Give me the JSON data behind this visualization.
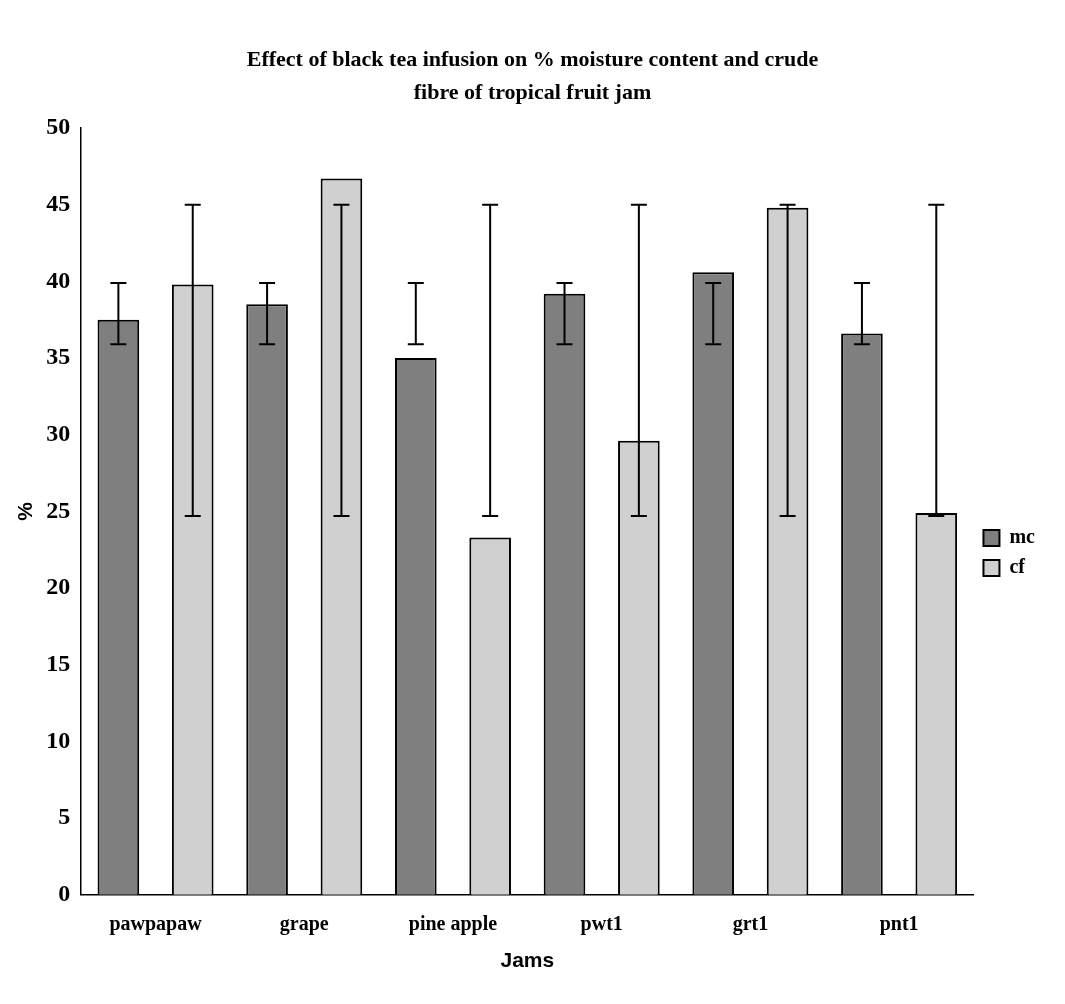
{
  "chart_data": {
    "type": "bar",
    "title": "Effect of black tea infusion on % moisture content and crude fibre of tropical fruit jam",
    "xlabel": "Jams",
    "ylabel": "%",
    "categories": [
      "pawpapaw",
      "grape",
      "pine apple",
      "pwt1",
      "grt1",
      "pnt1"
    ],
    "series": [
      {
        "name": "mc",
        "color": "#7f7f7f",
        "values": [
          37.5,
          38.5,
          35.0,
          39.2,
          40.6,
          36.6
        ],
        "errors": [
          [
            35.9,
            39.9
          ],
          [
            35.9,
            39.9
          ],
          [
            35.9,
            39.9
          ],
          [
            35.9,
            39.9
          ],
          [
            35.9,
            39.9
          ],
          [
            35.9,
            39.9
          ]
        ]
      },
      {
        "name": "cf",
        "color": "#d0d0d0",
        "values": [
          39.8,
          46.7,
          23.3,
          29.6,
          44.8,
          24.9
        ],
        "errors": [
          [
            24.7,
            45
          ],
          [
            24.7,
            45
          ],
          [
            24.7,
            45
          ],
          [
            24.7,
            45
          ],
          [
            24.7,
            45
          ],
          [
            24.7,
            45
          ]
        ]
      }
    ],
    "ylim": [
      0,
      50
    ],
    "yticks": [
      0,
      5,
      10,
      15,
      20,
      25,
      30,
      35,
      40,
      45,
      50
    ],
    "legend": "right",
    "grid": false
  }
}
